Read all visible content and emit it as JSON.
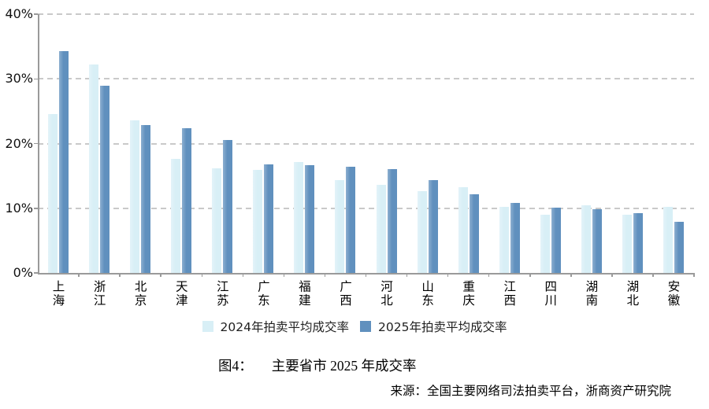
{
  "chart_data": {
    "type": "bar",
    "categories": [
      "上海",
      "浙江",
      "北京",
      "天津",
      "江苏",
      "广东",
      "福建",
      "广西",
      "河北",
      "山东",
      "重庆",
      "江西",
      "四川",
      "湖南",
      "湖北",
      "安徽"
    ],
    "series": [
      {
        "name": "2024年拍卖平均成交率",
        "color": "#d8eff6",
        "values": [
          24.5,
          32.2,
          23.6,
          17.6,
          16.2,
          15.9,
          17.2,
          14.4,
          13.6,
          12.7,
          13.2,
          10.2,
          9.0,
          10.4,
          9.0,
          10.2
        ]
      },
      {
        "name": "2025年拍卖平均成交率",
        "color": "#6090be",
        "values": [
          34.3,
          28.9,
          22.8,
          22.4,
          20.6,
          16.8,
          16.7,
          16.4,
          16.1,
          14.4,
          12.2,
          10.8,
          10.1,
          9.9,
          9.2,
          7.9
        ]
      }
    ],
    "ylim": [
      0,
      40
    ],
    "ytick_step": 10,
    "ytick_labels": [
      "40%",
      "30%",
      "20%",
      "10%",
      "0%"
    ],
    "grid": "horizontal-dashed",
    "grid_color": "#c9c9c9",
    "axis_color": "#9a9a9a",
    "legend_position": "bottom"
  },
  "caption": {
    "label": "图4：",
    "text": "主要省市 2025 年成交率"
  },
  "source": {
    "text": "来源：全国主要网络司法拍卖平台，浙商资产研究院"
  }
}
